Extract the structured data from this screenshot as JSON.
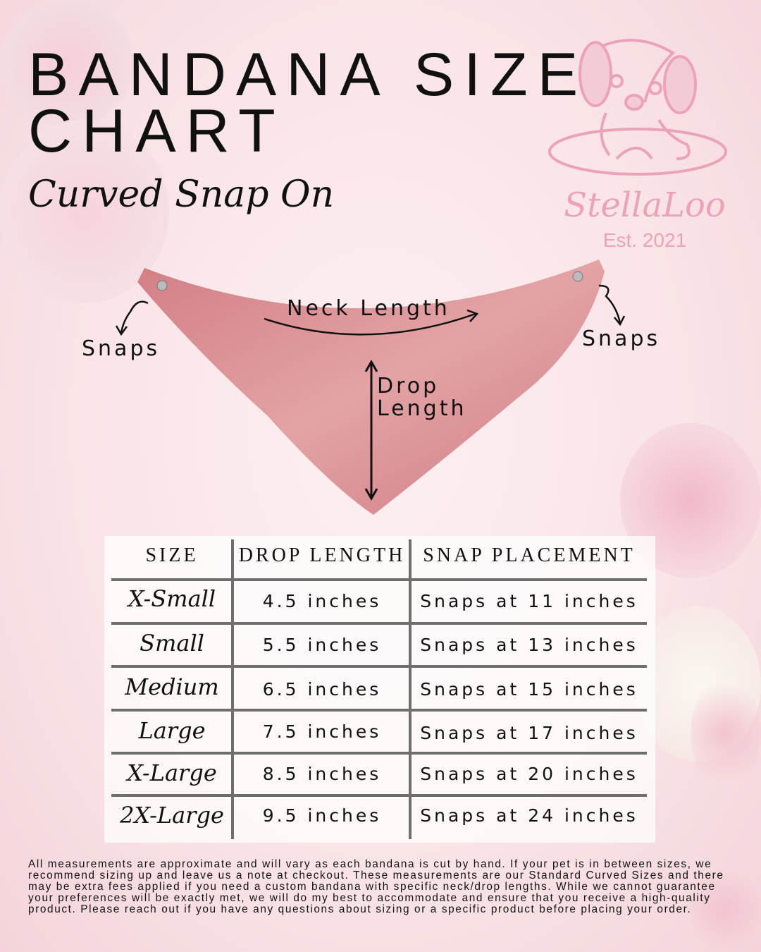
{
  "header": {
    "title_line1": "BANDANA SIZE",
    "title_line2": "CHART",
    "subtitle": "Curved Snap On"
  },
  "logo": {
    "brand": "StellaLoo",
    "established": "Est. 2021",
    "color": "#eaa3b8"
  },
  "diagram": {
    "neck_length_label": "Neck Length",
    "drop_length_label_line1": "Drop",
    "drop_length_label_line2": "Length",
    "snaps_left_label": "Snaps",
    "snaps_right_label": "Snaps",
    "bandana_color": "#d98a8e"
  },
  "table": {
    "headers": [
      "SIZE",
      "DROP LENGTH",
      "SNAP PLACEMENT"
    ],
    "rows": [
      {
        "size": "X-Small",
        "drop": "4.5 inches",
        "snap": "Snaps at 11 inches"
      },
      {
        "size": "Small",
        "drop": "5.5 inches",
        "snap": "Snaps at 13 inches"
      },
      {
        "size": "Medium",
        "drop": "6.5 inches",
        "snap": "Snaps at 15 inches"
      },
      {
        "size": "Large",
        "drop": "7.5 inches",
        "snap": "Snaps at 17 inches"
      },
      {
        "size": "X-Large",
        "drop": "8.5 inches",
        "snap": "Snaps at 20 inches"
      },
      {
        "size": "2X-Large",
        "drop": "9.5 inches",
        "snap": "Snaps at 24 inches"
      }
    ]
  },
  "footer": {
    "note": "All measurements are approximate and will vary as each bandana is cut by hand. If your pet is in between sizes, we recommend sizing up and leave us a note at checkout. These measurements are our Standard Curved Sizes and there may be extra fees applied if you need a custom bandana with specific neck/drop lengths. While we cannot guarantee your preferences will be exactly met, we will do my best to accommodate and ensure that you receive a high-quality product. Please reach out if you have any questions about sizing or a specific product before placing your order."
  }
}
